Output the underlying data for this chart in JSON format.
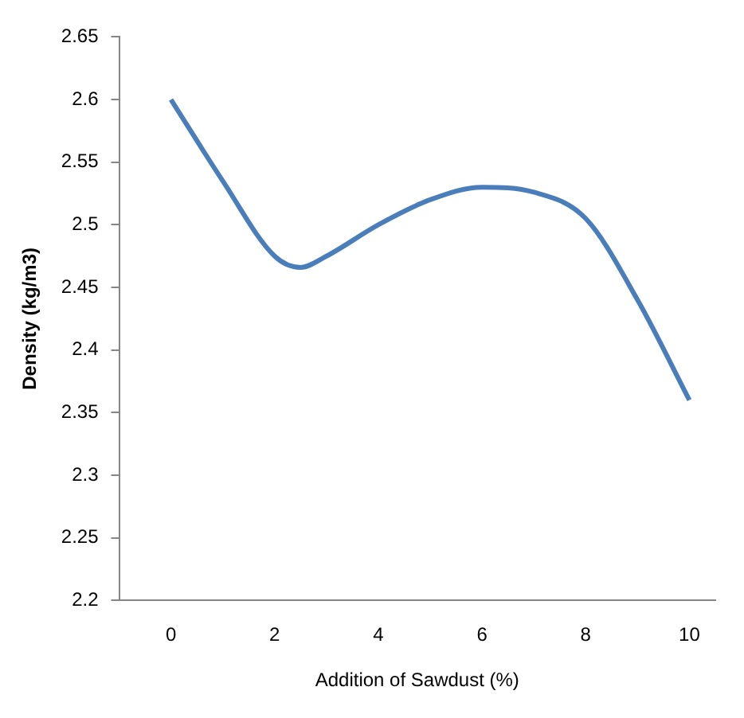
{
  "chart_data": {
    "type": "line",
    "xlabel": "Addition of Sawdust (%)",
    "ylabel": "Density (kg/m3)",
    "x": [
      0,
      1,
      2,
      2.5,
      3,
      4,
      5,
      6,
      7,
      8,
      9,
      10
    ],
    "series": [
      {
        "color": "#4a7ebb",
        "values": [
          2.6,
          2.535,
          2.475,
          2.466,
          2.475,
          2.5,
          2.52,
          2.53,
          2.526,
          2.505,
          2.44,
          2.36
        ]
      }
    ],
    "xlim": [
      -1,
      10.5
    ],
    "xticks": [
      0,
      2,
      4,
      6,
      8,
      10
    ],
    "ylim": [
      2.2,
      2.65
    ],
    "yticks": [
      2.2,
      2.25,
      2.3,
      2.35,
      2.4,
      2.45,
      2.5,
      2.55,
      2.6,
      2.65
    ],
    "grid": false,
    "legend": false,
    "marker": "none",
    "line_style": "solid"
  }
}
